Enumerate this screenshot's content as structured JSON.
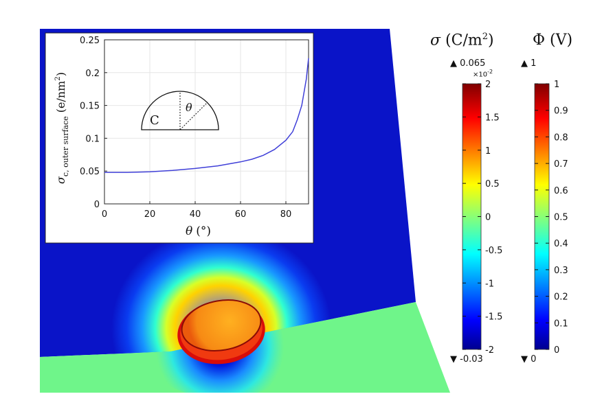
{
  "colorbars": {
    "sigma": {
      "title_symbol": "σ",
      "title_unit": "(C/m",
      "title_unit_sup": "2",
      "title_close": ")",
      "max_label": "▲ 0.065",
      "min_label": "▼ -0.03",
      "exponent": "×10",
      "exponent_sup": "-2",
      "ticks": [
        "2",
        "1.5",
        "1",
        "0.5",
        "0",
        "-0.5",
        "-1",
        "-1.5",
        "-2"
      ],
      "tick_values": [
        2,
        1.5,
        1,
        0.5,
        0,
        -0.5,
        -1,
        -1.5,
        -2
      ],
      "range": [
        -2,
        2
      ]
    },
    "phi": {
      "title_symbol": "Φ",
      "title_unit": "(V)",
      "max_label": "▲ 1",
      "min_label": "▼ 0",
      "ticks": [
        "1",
        "0.9",
        "0.8",
        "0.7",
        "0.6",
        "0.5",
        "0.4",
        "0.3",
        "0.2",
        "0.1",
        "0"
      ],
      "tick_values": [
        1,
        0.9,
        0.8,
        0.7,
        0.6,
        0.5,
        0.4,
        0.3,
        0.2,
        0.1,
        0
      ],
      "range": [
        0,
        1
      ]
    }
  },
  "inset": {
    "xlabel_symbol": "θ",
    "xlabel_unit": "(°)",
    "ylabel_symbol": "σ",
    "ylabel_subscript": "c, outer surface",
    "ylabel_unit": "(e/nm",
    "ylabel_unit_sup": "2",
    "ylabel_close": ")",
    "diagram_label_c": "C",
    "diagram_label_theta": "θ",
    "line_color": "#3f3fd8"
  },
  "chart_data": {
    "type": "line",
    "x": [
      0,
      10,
      20,
      30,
      40,
      50,
      60,
      65,
      70,
      75,
      80,
      83,
      85,
      87,
      89,
      90
    ],
    "series": [
      {
        "values": [
          0.048,
          0.048,
          0.049,
          0.051,
          0.054,
          0.058,
          0.064,
          0.068,
          0.074,
          0.083,
          0.097,
          0.11,
          0.128,
          0.15,
          0.19,
          0.222
        ]
      }
    ],
    "xlim": [
      0,
      90
    ],
    "ylim": [
      0,
      0.25
    ],
    "xticks": [
      "0",
      "20",
      "40",
      "60",
      "80"
    ],
    "xtick_values": [
      0,
      20,
      40,
      60,
      80
    ],
    "yticks": [
      "0",
      "0.05",
      "0.1",
      "0.15",
      "0.2",
      "0.25"
    ],
    "ytick_values": [
      0,
      0.05,
      0.1,
      0.15,
      0.2,
      0.25
    ],
    "grid": true
  },
  "colors": {
    "field_dark_blue": "#0a14c8",
    "surface_green": "#6ff58a",
    "particle_orange": "#f79a18",
    "particle_rim_red": "#e8160c"
  }
}
